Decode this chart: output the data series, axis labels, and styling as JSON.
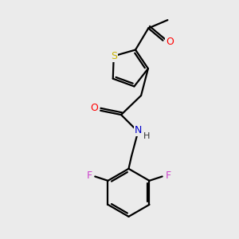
{
  "background_color": "#ebebeb",
  "atom_colors": {
    "S": "#c8b400",
    "O": "#ff0000",
    "N": "#0000cc",
    "F": "#cc44cc",
    "C": "#000000",
    "H": "#333333"
  },
  "bond_color": "#000000",
  "bond_width": 1.6
}
